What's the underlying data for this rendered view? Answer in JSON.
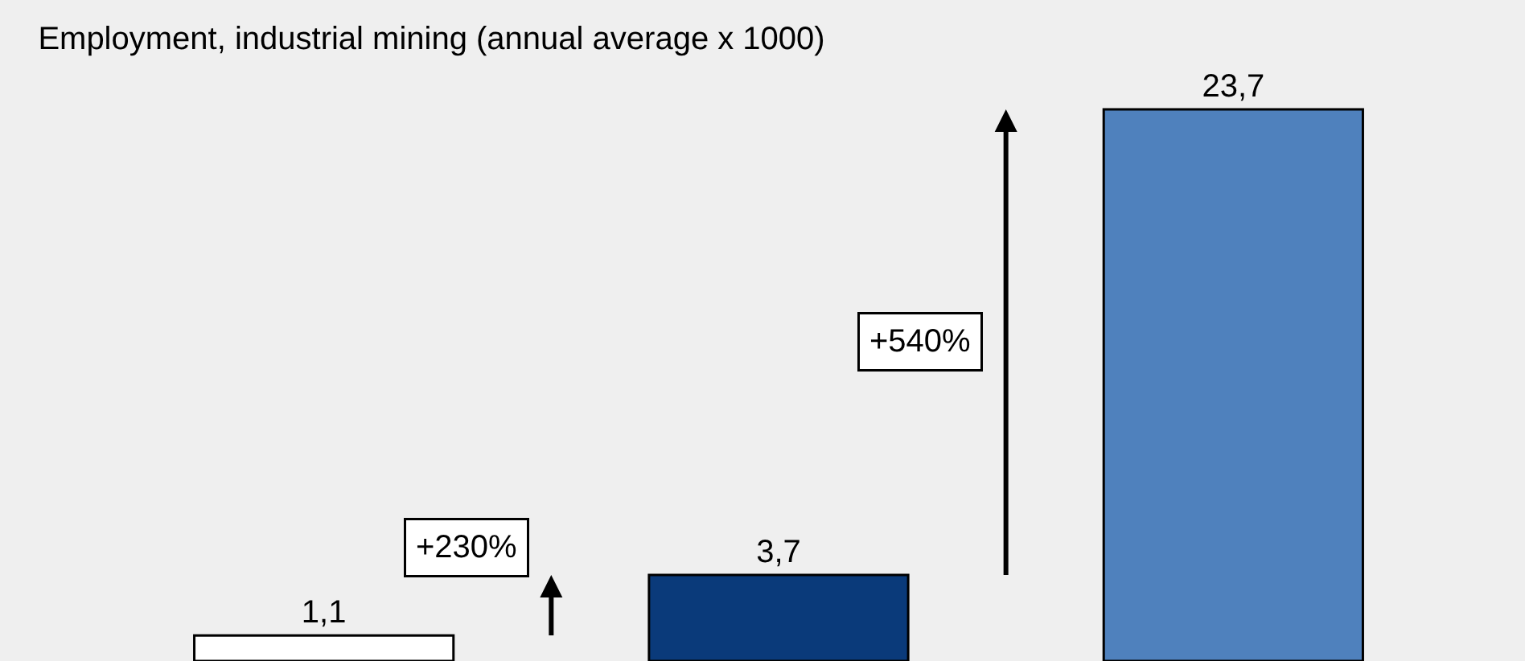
{
  "chart_data": {
    "type": "bar",
    "title": "Employment, industrial mining (annual average x 1000)",
    "categories": [
      null,
      null,
      null
    ],
    "values": [
      1.1,
      3.7,
      23.7
    ],
    "value_labels": [
      "1,1",
      "3,7",
      "23,7"
    ],
    "colors": [
      "#ffffff",
      "#0a3a7a",
      "#4f81bd"
    ],
    "annotations": [
      {
        "text": "+230%"
      },
      {
        "text": "+540%"
      }
    ]
  }
}
